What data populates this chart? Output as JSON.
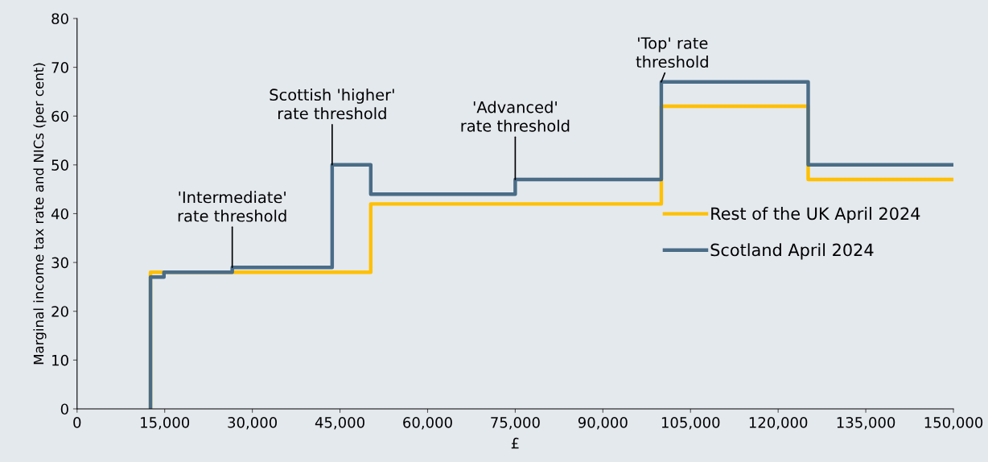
{
  "chart_data": {
    "type": "step",
    "xlabel": "£",
    "ylabel": "Marginal income tax rate and NICs (per cent)",
    "series": [
      {
        "name": "Rest of the UK April 2024",
        "color": "#ffc000",
        "x": [
          12570,
          12570,
          50270,
          100000,
          125140,
          150000
        ],
        "values": [
          0,
          28,
          42,
          62,
          47,
          47
        ]
      },
      {
        "name": "Scotland April 2024",
        "color": "#4a6c87",
        "x": [
          12570,
          12570,
          14876,
          26562,
          43663,
          50270,
          75000,
          100000,
          125140,
          150000
        ],
        "values": [
          0,
          27,
          28,
          29,
          50,
          44,
          47,
          67,
          50,
          50
        ]
      }
    ],
    "annotations": [
      {
        "text": "'Intermediate'\nrate threshold",
        "x": 26562,
        "y": 29
      },
      {
        "text": "Scottish 'higher'\nrate threshold",
        "x": 43663,
        "y": 50
      },
      {
        "text": "'Advanced'\nrate threshold",
        "x": 75000,
        "y": 47
      },
      {
        "text": "'Top' rate\nthreshold",
        "x": 100000,
        "y": 67
      }
    ],
    "xlim": [
      0,
      150000
    ],
    "xticks": [
      {
        "value": 0,
        "label": "0"
      },
      {
        "value": 15000,
        "label": "15,000"
      },
      {
        "value": 30000,
        "label": "30,000"
      },
      {
        "value": 45000,
        "label": "45,000"
      },
      {
        "value": 60000,
        "label": "60,000"
      },
      {
        "value": 75000,
        "label": "75,000"
      },
      {
        "value": 90000,
        "label": "90,000"
      },
      {
        "value": 105000,
        "label": "105,000"
      },
      {
        "value": 120000,
        "label": "120,000"
      },
      {
        "value": 135000,
        "label": "135,000"
      },
      {
        "value": 150000,
        "label": "150,000"
      }
    ],
    "ylim": [
      0,
      80
    ],
    "yticks": [
      0,
      10,
      20,
      30,
      40,
      50,
      60,
      70,
      80
    ],
    "grid": false,
    "legend": "right",
    "line_style": "solid"
  }
}
